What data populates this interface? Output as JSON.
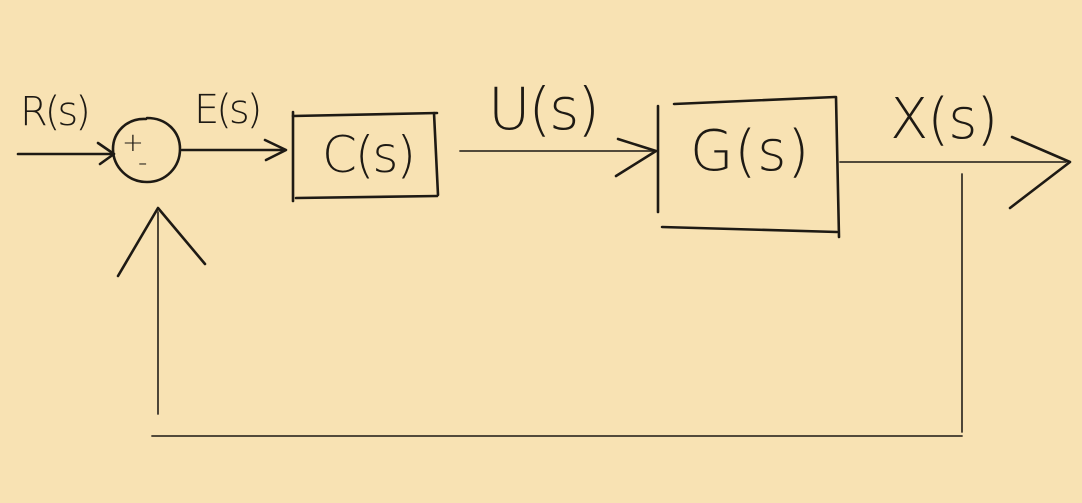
{
  "signals": {
    "reference": "R(s)",
    "error": "E(s)",
    "control": "U(s)",
    "output": "X(s)"
  },
  "blocks": {
    "controller": "C(s)",
    "plant": "G(s)"
  },
  "summing_junction": {
    "plus_sign": "+",
    "minus_sign": "-"
  },
  "colors": {
    "background": "#f8e2b3",
    "ink": "#1e1a14"
  }
}
